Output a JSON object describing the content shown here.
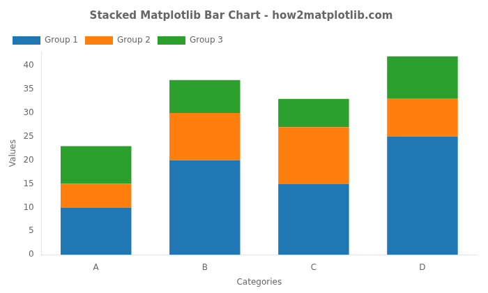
{
  "chart_data": {
    "type": "bar",
    "stacked": true,
    "title": "Stacked Matplotlib Bar Chart - how2matplotlib.com",
    "xlabel": "Categories",
    "ylabel": "Values",
    "categories": [
      "A",
      "B",
      "C",
      "D"
    ],
    "series": [
      {
        "name": "Group 1",
        "color": "#1f77b4",
        "values": [
          10,
          20,
          15,
          25
        ]
      },
      {
        "name": "Group 2",
        "color": "#ff7f0e",
        "values": [
          5,
          10,
          12,
          8
        ]
      },
      {
        "name": "Group 3",
        "color": "#2ca02c",
        "values": [
          8,
          7,
          6,
          9
        ]
      }
    ],
    "ylim": [
      0,
      43
    ],
    "yticks": [
      0,
      5,
      10,
      15,
      20,
      25,
      30,
      35,
      40
    ],
    "grid": false,
    "legend": "upper left"
  }
}
